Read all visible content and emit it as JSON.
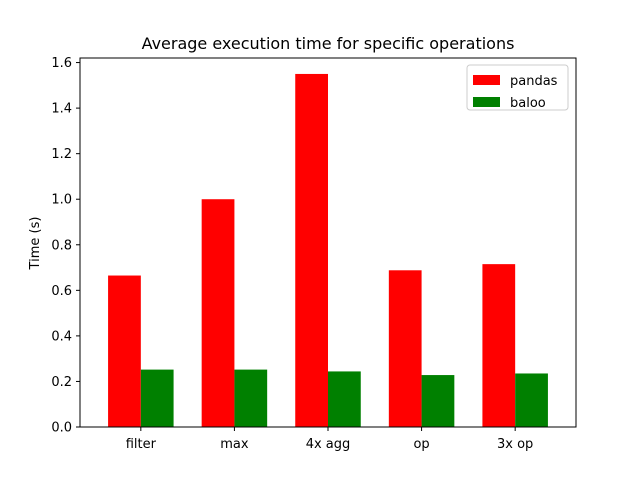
{
  "chart_data": {
    "type": "bar",
    "title": "Average execution time for specific operations",
    "xlabel": "",
    "ylabel": "Time (s)",
    "categories": [
      "filter",
      "max",
      "4x agg",
      "op",
      "3x op"
    ],
    "series": [
      {
        "name": "pandas",
        "color": "#ff0000",
        "values": [
          0.665,
          1.0,
          1.55,
          0.688,
          0.715
        ]
      },
      {
        "name": "baloo",
        "color": "#008000",
        "values": [
          0.252,
          0.252,
          0.244,
          0.228,
          0.235
        ]
      }
    ],
    "ylim": [
      0,
      1.62
    ],
    "yticks": [
      "0.0",
      "0.2",
      "0.4",
      "0.6",
      "0.8",
      "1.0",
      "1.2",
      "1.4",
      "1.6"
    ],
    "grid": false,
    "legend_position": "top-right"
  }
}
